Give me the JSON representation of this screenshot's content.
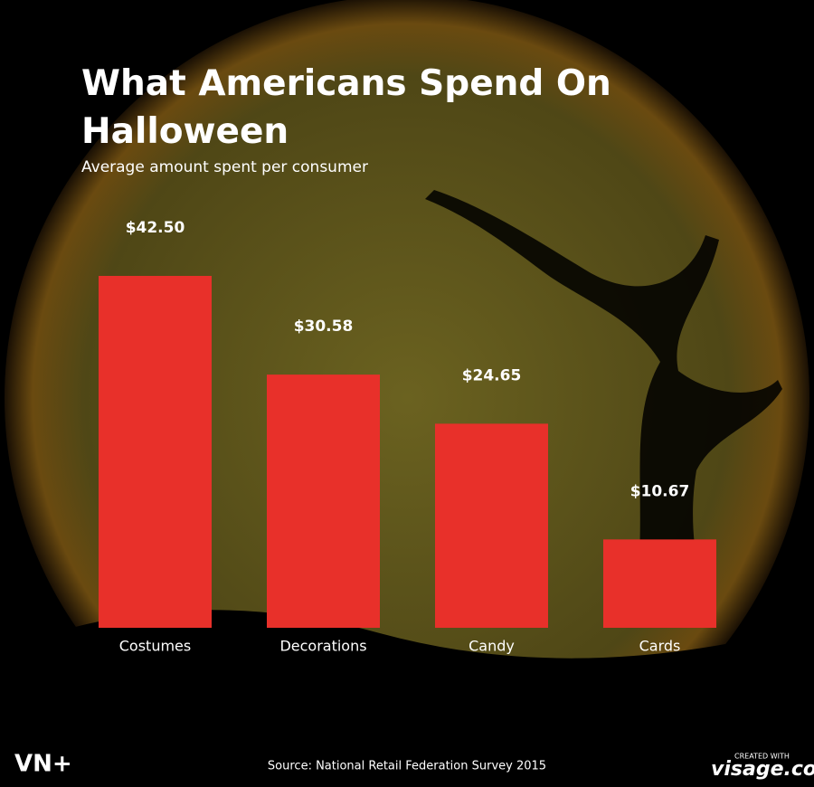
{
  "chart_data": {
    "type": "bar",
    "title": "What Americans Spend On Halloween",
    "subtitle": "Average amount spent per consumer",
    "categories": [
      "Costumes",
      "Decorations",
      "Candy",
      "Cards"
    ],
    "values": [
      42.5,
      30.58,
      24.65,
      10.67
    ],
    "value_labels": [
      "$42.50",
      "$30.58",
      "$24.65",
      "$10.67"
    ],
    "color": "#e8302a",
    "source": "Source: National Retail Federation Survey 2015"
  },
  "branding": {
    "logo": "VN+",
    "credit_prefix": "CREATED WITH",
    "credit": "visage.co"
  }
}
